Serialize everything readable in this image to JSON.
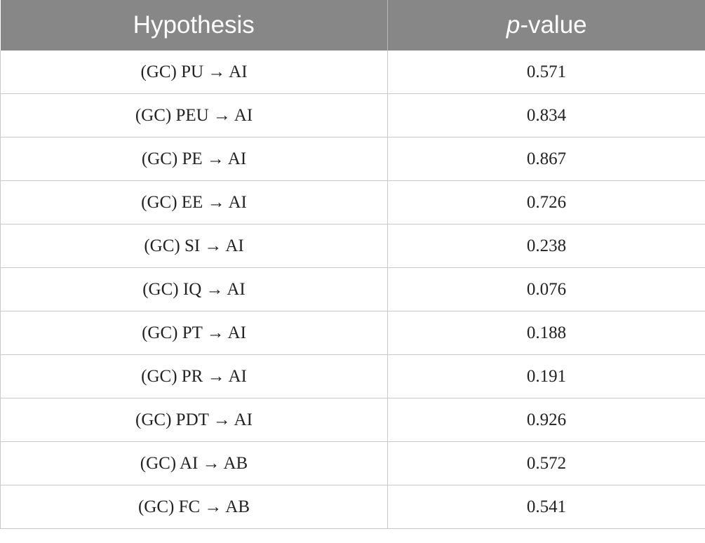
{
  "table": {
    "headers": {
      "hypothesis": "Hypothesis",
      "pvalue_italic": "p",
      "pvalue_rest": "-value"
    },
    "rows": [
      {
        "hypothesis": "(GC) PU → AI",
        "pvalue": "0.571"
      },
      {
        "hypothesis": "(GC) PEU → AI",
        "pvalue": "0.834"
      },
      {
        "hypothesis": "(GC) PE → AI",
        "pvalue": "0.867"
      },
      {
        "hypothesis": "(GC) EE → AI",
        "pvalue": "0.726"
      },
      {
        "hypothesis": "(GC) SI → AI",
        "pvalue": "0.238"
      },
      {
        "hypothesis": "(GC) IQ → AI",
        "pvalue": "0.076"
      },
      {
        "hypothesis": "(GC) PT → AI",
        "pvalue": "0.188"
      },
      {
        "hypothesis": "(GC) PR → AI",
        "pvalue": "0.191"
      },
      {
        "hypothesis": "(GC) PDT → AI",
        "pvalue": "0.926"
      },
      {
        "hypothesis": "(GC) AI → AB",
        "pvalue": "0.572"
      },
      {
        "hypothesis": "(GC) FC → AB",
        "pvalue": "0.541"
      }
    ]
  },
  "colors": {
    "header_bg": "#878787",
    "header_text": "#ffffff",
    "grid": "#c9c9c9"
  }
}
